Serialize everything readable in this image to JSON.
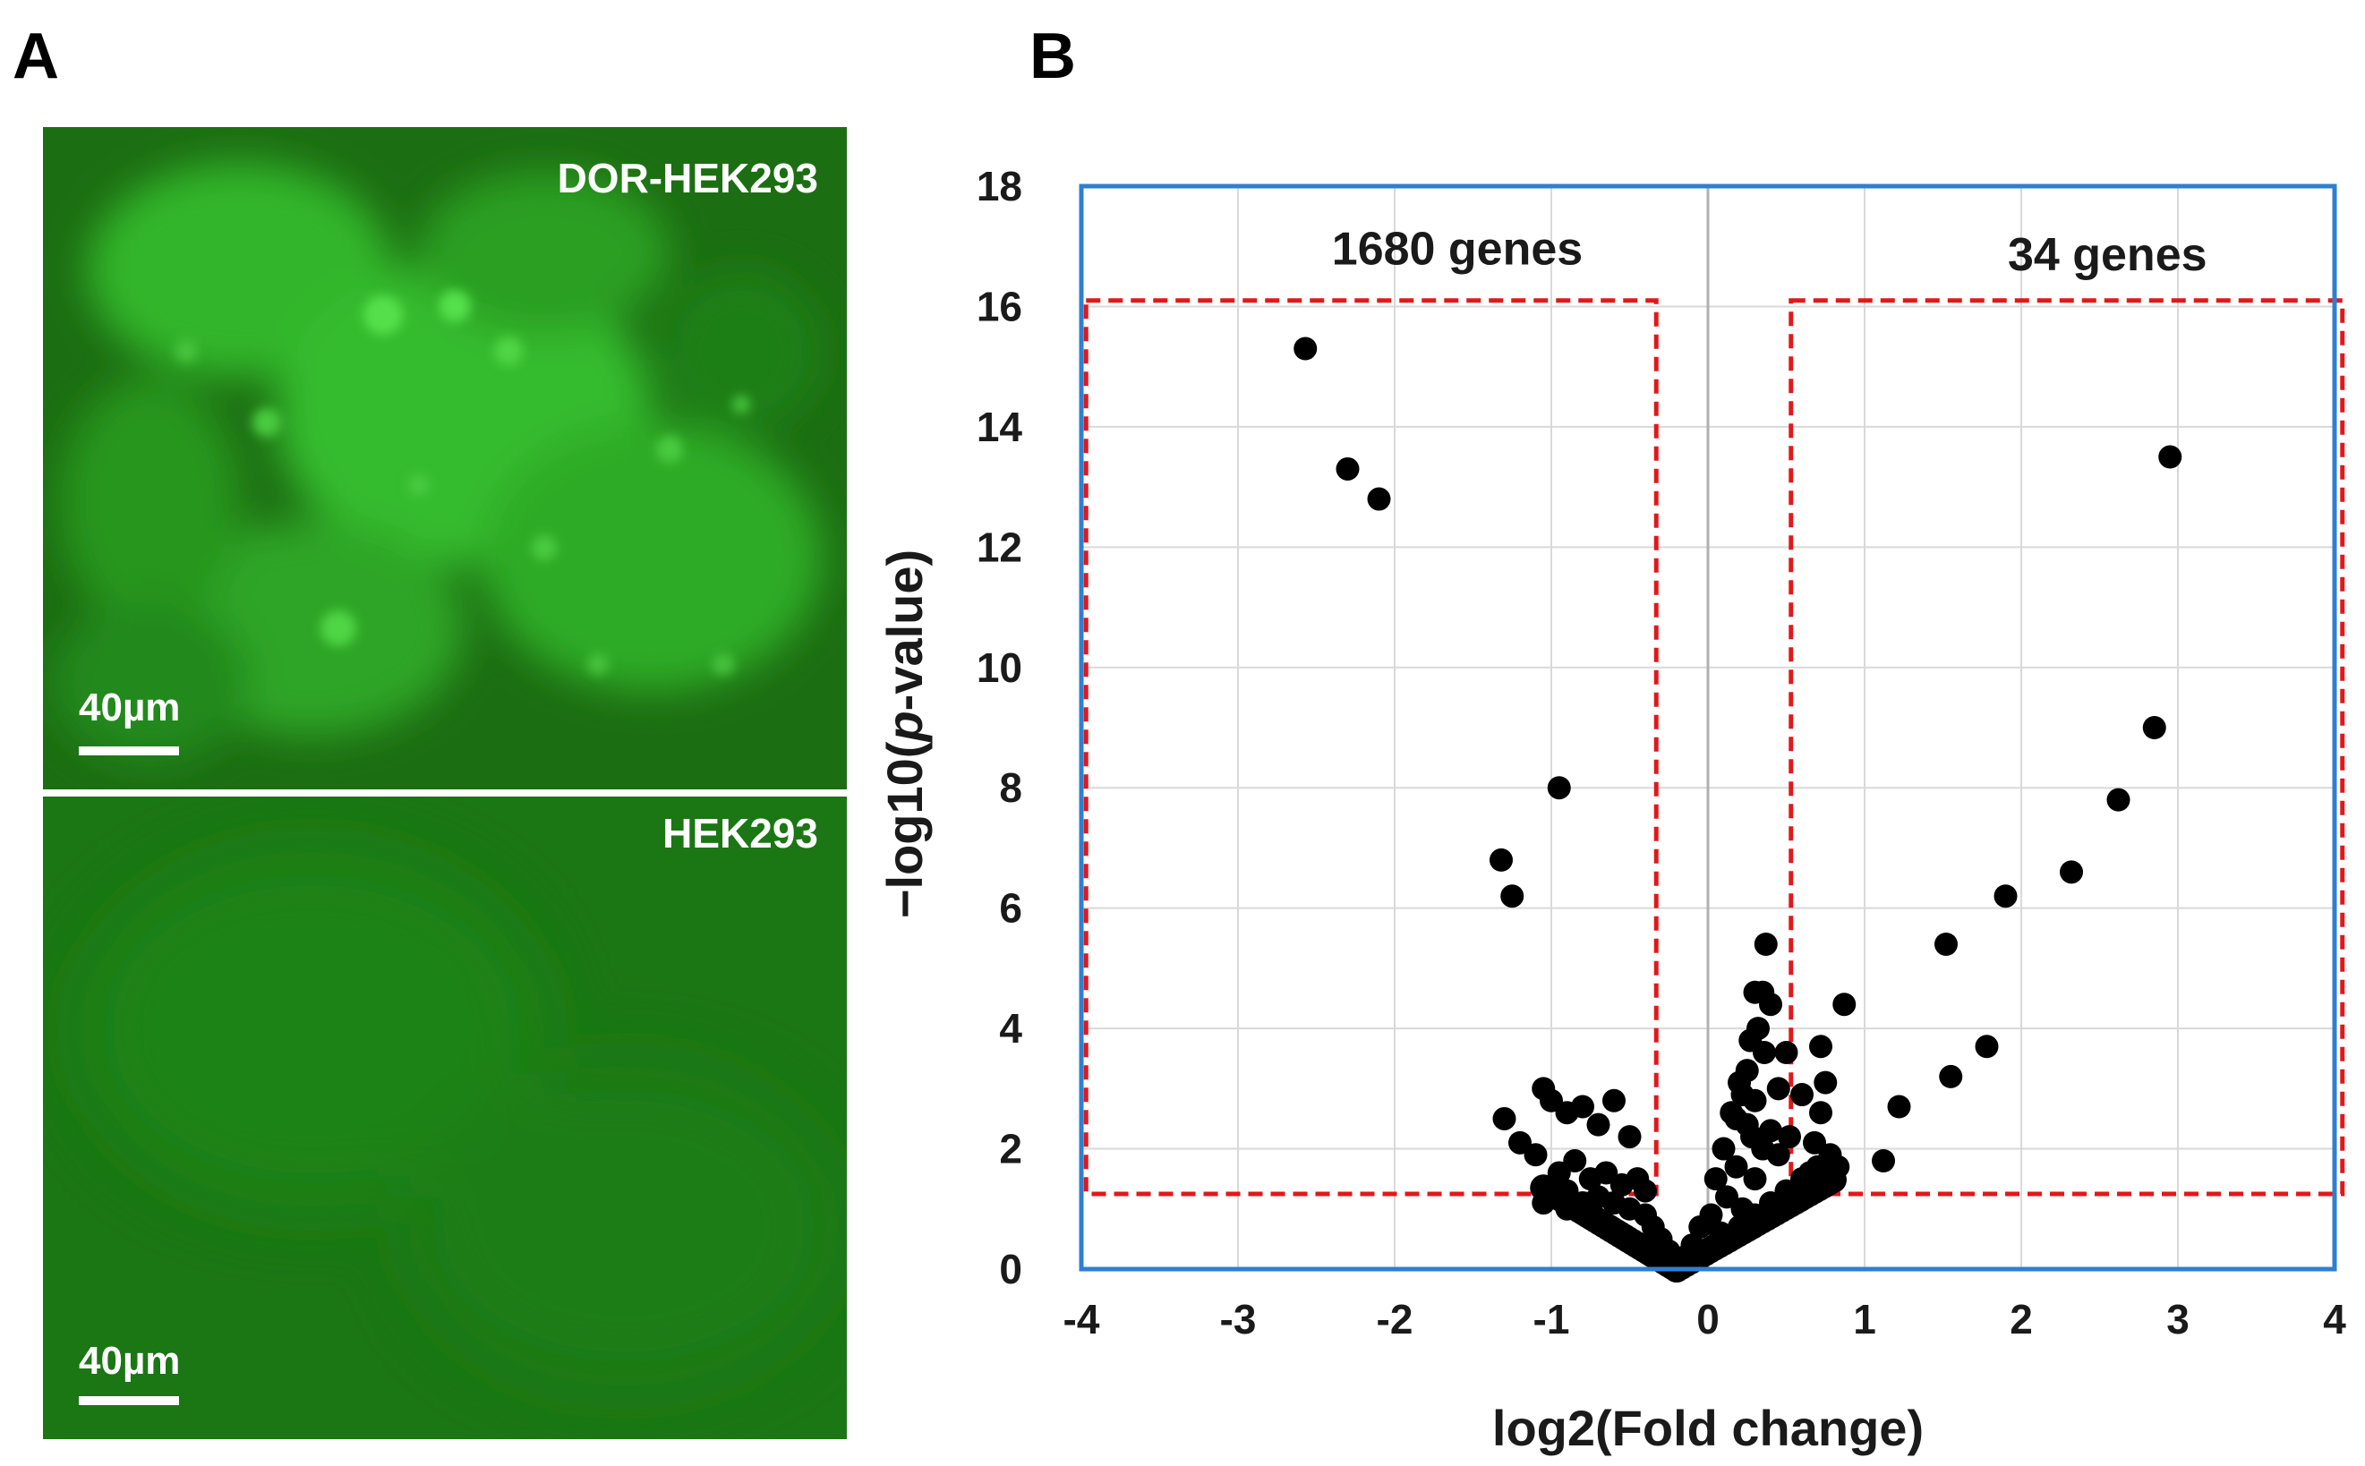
{
  "panels": {
    "a_label": "A",
    "b_label": "B"
  },
  "micrographs": [
    {
      "label": "DOR-HEK293",
      "scale_text": "40µm",
      "tone": "#29b023"
    },
    {
      "label": "HEK293",
      "scale_text": "40µm",
      "tone": "#1e8a16"
    }
  ],
  "chart_data": {
    "type": "scatter",
    "title": "",
    "xlabel": "log2(Fold change)",
    "ylabel": "−log10(p-value)",
    "ylabel_prefix": "−log10(",
    "ylabel_italic": "p",
    "ylabel_suffix": "-value)",
    "xlim": [
      -4,
      4
    ],
    "ylim": [
      0,
      18
    ],
    "xticks": [
      "-4",
      "-3",
      "-2",
      "-1",
      "0",
      "1",
      "2",
      "3",
      "4"
    ],
    "yticks": [
      "0",
      "2",
      "4",
      "6",
      "8",
      "10",
      "12",
      "14",
      "16",
      "18"
    ],
    "grid": true,
    "colors": {
      "frame": "#2f7fd0",
      "threshold_box": "#e0191b",
      "points": "#000000",
      "grid": "#d9d9d9"
    },
    "annotations": [
      {
        "text": "1680 genes",
        "x": -1.6,
        "y": 16.7
      },
      {
        "text": "34 genes",
        "x": 2.55,
        "y": 16.6
      }
    ],
    "threshold_boxes": [
      {
        "x0": -3.97,
        "x1": -0.33,
        "y0": 1.25,
        "y1": 16.1
      },
      {
        "x0": 0.53,
        "x1": 4.05,
        "y0": 1.25,
        "y1": 16.1
      }
    ],
    "series": [
      {
        "points": [
          [
            -2.57,
            15.3
          ],
          [
            -2.3,
            13.3
          ],
          [
            -2.1,
            12.8
          ],
          [
            -0.95,
            8.0
          ],
          [
            -1.32,
            6.8
          ],
          [
            -1.25,
            6.2
          ],
          [
            -1.3,
            2.5
          ],
          [
            -1.2,
            2.1
          ],
          [
            -1.05,
            3.0
          ],
          [
            -1.0,
            2.8
          ],
          [
            -0.9,
            2.6
          ],
          [
            -0.8,
            2.7
          ],
          [
            -0.6,
            2.8
          ],
          [
            -0.7,
            2.4
          ],
          [
            -0.5,
            2.2
          ],
          [
            -1.1,
            1.9
          ],
          [
            -0.95,
            1.6
          ],
          [
            -0.85,
            1.8
          ],
          [
            -0.75,
            1.5
          ],
          [
            -0.65,
            1.6
          ],
          [
            -0.55,
            1.4
          ],
          [
            -0.45,
            1.5
          ],
          [
            -0.4,
            1.3
          ],
          [
            -0.9,
            1.3
          ],
          [
            2.95,
            13.5
          ],
          [
            2.85,
            9.0
          ],
          [
            2.62,
            7.8
          ],
          [
            2.32,
            6.6
          ],
          [
            1.9,
            6.2
          ],
          [
            1.52,
            5.4
          ],
          [
            0.87,
            4.4
          ],
          [
            1.78,
            3.7
          ],
          [
            1.55,
            3.2
          ],
          [
            1.22,
            2.7
          ],
          [
            1.12,
            1.8
          ],
          [
            0.72,
            3.7
          ],
          [
            0.75,
            3.1
          ],
          [
            0.72,
            2.6
          ],
          [
            0.68,
            2.1
          ],
          [
            0.78,
            1.9
          ],
          [
            0.83,
            1.7
          ],
          [
            0.6,
            2.9
          ],
          [
            0.65,
            1.6
          ],
          [
            0.7,
            1.4
          ],
          [
            0.6,
            1.2
          ],
          [
            0.52,
            2.2
          ],
          [
            0.55,
            1.1
          ],
          [
            0.37,
            5.4
          ],
          [
            0.35,
            4.6
          ],
          [
            0.3,
            4.6
          ],
          [
            0.4,
            4.4
          ],
          [
            0.32,
            4.0
          ],
          [
            0.27,
            3.8
          ],
          [
            0.36,
            3.6
          ],
          [
            0.5,
            3.6
          ],
          [
            0.45,
            3.0
          ],
          [
            0.25,
            3.3
          ],
          [
            0.2,
            3.1
          ],
          [
            0.3,
            2.8
          ],
          [
            0.15,
            2.6
          ],
          [
            0.25,
            2.4
          ],
          [
            0.4,
            2.3
          ],
          [
            0.1,
            2.0
          ],
          [
            0.18,
            1.7
          ],
          [
            0.3,
            1.5
          ],
          [
            0.05,
            1.5
          ],
          [
            0.12,
            1.2
          ],
          [
            0.22,
            1.0
          ],
          [
            0.02,
            0.9
          ],
          [
            -0.05,
            0.7
          ],
          [
            0.08,
            0.6
          ],
          [
            -0.1,
            0.4
          ],
          [
            -0.15,
            0.2
          ],
          [
            -0.2,
            0.1
          ],
          [
            -0.25,
            0.3
          ],
          [
            -0.3,
            0.5
          ],
          [
            -0.35,
            0.7
          ],
          [
            -0.4,
            0.9
          ],
          [
            -0.5,
            1.0
          ],
          [
            -0.6,
            1.1
          ],
          [
            -0.7,
            1.2
          ],
          [
            -0.8,
            1.1
          ],
          [
            -0.9,
            1.0
          ],
          [
            -1.0,
            1.2
          ],
          [
            -1.05,
            1.1
          ],
          [
            -0.2,
            0.05
          ],
          [
            -0.1,
            0.15
          ],
          [
            0.0,
            0.3
          ],
          [
            0.1,
            0.5
          ],
          [
            0.2,
            0.7
          ],
          [
            0.3,
            0.9
          ],
          [
            0.4,
            1.1
          ],
          [
            0.5,
            1.3
          ],
          [
            0.6,
            1.5
          ],
          [
            0.7,
            1.7
          ],
          [
            0.8,
            1.6
          ],
          [
            0.45,
            1.9
          ],
          [
            0.35,
            2.0
          ],
          [
            0.28,
            2.2
          ],
          [
            0.22,
            2.9
          ],
          [
            0.18,
            2.5
          ]
        ]
      }
    ]
  }
}
